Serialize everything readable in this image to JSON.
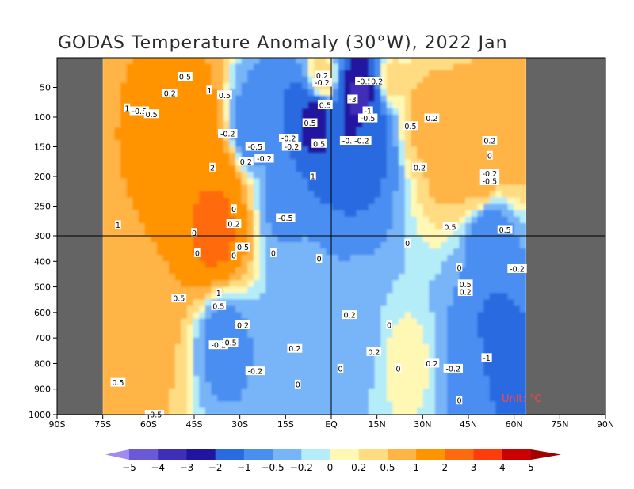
{
  "chart_data": {
    "type": "heatmap",
    "title": "GODAS Temperature Anomaly (30°W), 2022 Jan",
    "units_label": "Unit: °C",
    "x_axis": {
      "range": [
        -90,
        90
      ],
      "ticks": [
        -90,
        -75,
        -60,
        -45,
        -30,
        -15,
        0,
        15,
        30,
        45,
        60,
        75,
        90
      ],
      "tick_labels": [
        "90S",
        "75S",
        "60S",
        "45S",
        "30S",
        "15S",
        "EQ",
        "15N",
        "30N",
        "45N",
        "60N",
        "75N",
        "90N"
      ]
    },
    "y_axis": {
      "label_units": "m",
      "reversed": true,
      "upper_segment": [
        0,
        300
      ],
      "lower_segment": [
        300,
        1000
      ],
      "ticks": [
        50,
        100,
        150,
        200,
        250,
        300,
        400,
        500,
        600,
        700,
        800,
        900,
        1000
      ],
      "tick_labels": [
        "50",
        "100",
        "150",
        "200",
        "250",
        "300",
        "400",
        "500",
        "600",
        "700",
        "800",
        "900",
        "1000"
      ]
    },
    "land_mask_lat": {
      "south_of": -75,
      "north_of": 64
    },
    "colorbar": {
      "levels": [
        -5,
        -4,
        -3,
        -2,
        -1,
        -0.5,
        -0.2,
        0,
        0.2,
        0.5,
        1,
        2,
        3,
        4,
        5
      ],
      "level_labels": [
        "−5",
        "−4",
        "−3",
        "−2",
        "−1",
        "−0.5",
        "−0.2",
        "0",
        "0.2",
        "0.5",
        "1",
        "2",
        "3",
        "4",
        "5"
      ],
      "colors": [
        "#a08cf0",
        "#6a5ad8",
        "#3f2fb8",
        "#2014a0",
        "#2a6ae0",
        "#4a8ef0",
        "#78b4f8",
        "#b4ecf8",
        "#fff8b4",
        "#ffdc82",
        "#ffb444",
        "#ff9400",
        "#ff6a10",
        "#ff3c0c",
        "#cc0000",
        "#a00000"
      ]
    },
    "features": [
      {
        "lat": -38,
        "depth": 290,
        "value": 2.5
      },
      {
        "lat": -38,
        "depth": 220,
        "value": 2
      },
      {
        "lat": -45,
        "depth": 120,
        "value": 1.5
      },
      {
        "lat": -68,
        "depth": 250,
        "value": 1
      },
      {
        "lat": -68,
        "depth": 600,
        "value": 1
      },
      {
        "lat": -60,
        "depth": 700,
        "value": 0.6
      },
      {
        "lat": -27,
        "depth": 120,
        "value": -0.8
      },
      {
        "lat": -16,
        "depth": 250,
        "value": -0.6
      },
      {
        "lat": -35,
        "depth": 700,
        "value": -0.8
      },
      {
        "lat": -20,
        "depth": 820,
        "value": -0.5
      },
      {
        "lat": -10,
        "depth": 550,
        "value": -0.3
      },
      {
        "lat": -5,
        "depth": 100,
        "value": -2.5
      },
      {
        "lat": 10,
        "depth": 75,
        "value": -3.5
      },
      {
        "lat": 13,
        "depth": 110,
        "value": -1.2
      },
      {
        "lat": 8,
        "depth": 700,
        "value": -0.3
      },
      {
        "lat": 25,
        "depth": 800,
        "value": 0.1
      },
      {
        "lat": 30,
        "depth": 100,
        "value": 0.7
      },
      {
        "lat": 40,
        "depth": 160,
        "value": 0.9
      },
      {
        "lat": 49,
        "depth": 200,
        "value": 0.8
      },
      {
        "lat": 52,
        "depth": 300,
        "value": -1
      },
      {
        "lat": 53,
        "depth": 750,
        "value": -1.5
      },
      {
        "lat": 47,
        "depth": 800,
        "value": -0.5
      },
      {
        "lat": 58,
        "depth": 150,
        "value": 0.8
      },
      {
        "lat": -3,
        "depth": 40,
        "value": 0.5
      },
      {
        "lat": 20,
        "depth": 40,
        "value": 0.3
      }
    ],
    "contour_labels": [
      {
        "t": "0.5",
        "lat": -48,
        "depth": 32
      },
      {
        "t": "0.2",
        "lat": -53,
        "depth": 60
      },
      {
        "t": "1",
        "lat": -40,
        "depth": 55
      },
      {
        "t": "0.5",
        "lat": -35,
        "depth": 63
      },
      {
        "t": "1",
        "lat": -67,
        "depth": 85
      },
      {
        "t": "-0.5",
        "lat": -63,
        "depth": 90
      },
      {
        "t": "0.5",
        "lat": -59,
        "depth": 95
      },
      {
        "t": "-0.2",
        "lat": -34,
        "depth": 128
      },
      {
        "t": "-0.5",
        "lat": -25,
        "depth": 150
      },
      {
        "t": "-0.2",
        "lat": -14,
        "depth": 136
      },
      {
        "t": "-0.2",
        "lat": -13,
        "depth": 150
      },
      {
        "t": "0.2",
        "lat": -28,
        "depth": 175
      },
      {
        "t": "-0.2",
        "lat": -22,
        "depth": 170
      },
      {
        "t": "2",
        "lat": -39,
        "depth": 185
      },
      {
        "t": "-0.5",
        "lat": -15,
        "depth": 270
      },
      {
        "t": "0",
        "lat": -32,
        "depth": 255
      },
      {
        "t": "0.2",
        "lat": -32,
        "depth": 280
      },
      {
        "t": "0",
        "lat": -45,
        "depth": 295
      },
      {
        "t": "1",
        "lat": -70,
        "depth": 282
      },
      {
        "t": "0.5",
        "lat": -29,
        "depth": 345
      },
      {
        "t": "0",
        "lat": -44,
        "depth": 368
      },
      {
        "t": "0",
        "lat": -32,
        "depth": 378
      },
      {
        "t": "0",
        "lat": -19,
        "depth": 368
      },
      {
        "t": "0.5",
        "lat": -50,
        "depth": 545
      },
      {
        "t": "1",
        "lat": -37,
        "depth": 525
      },
      {
        "t": "0.5",
        "lat": -37,
        "depth": 575
      },
      {
        "t": "0.2",
        "lat": -29,
        "depth": 650
      },
      {
        "t": "-0.2",
        "lat": -37,
        "depth": 728
      },
      {
        "t": "0.5",
        "lat": -33,
        "depth": 718
      },
      {
        "t": "0.2",
        "lat": -12,
        "depth": 742
      },
      {
        "t": "-0.2",
        "lat": -25,
        "depth": 830
      },
      {
        "t": "0",
        "lat": -11,
        "depth": 882
      },
      {
        "t": "0.5",
        "lat": -70,
        "depth": 875
      },
      {
        "t": "0.2",
        "lat": -3,
        "depth": 30
      },
      {
        "t": "-0.2",
        "lat": -3,
        "depth": 42
      },
      {
        "t": "0.5",
        "lat": -2,
        "depth": 80
      },
      {
        "t": "0.5",
        "lat": -7,
        "depth": 110
      },
      {
        "t": "0.5",
        "lat": -4,
        "depth": 145
      },
      {
        "t": "1",
        "lat": -6,
        "depth": 200
      },
      {
        "t": "-3",
        "lat": 7,
        "depth": 70
      },
      {
        "t": "-0.5",
        "lat": 11,
        "depth": 40
      },
      {
        "t": "0.2",
        "lat": 15,
        "depth": 40
      },
      {
        "t": "-1",
        "lat": 12,
        "depth": 90
      },
      {
        "t": "-0.5",
        "lat": 12,
        "depth": 102
      },
      {
        "t": "-0.5",
        "lat": 6,
        "depth": 140
      },
      {
        "t": "-0.2",
        "lat": 10,
        "depth": 140
      },
      {
        "t": "0.5",
        "lat": 26,
        "depth": 115
      },
      {
        "t": "0.2",
        "lat": 33,
        "depth": 102
      },
      {
        "t": "0.2",
        "lat": 29,
        "depth": 185
      },
      {
        "t": "0.5",
        "lat": 39,
        "depth": 285
      },
      {
        "t": "0",
        "lat": 25,
        "depth": 330
      },
      {
        "t": "0",
        "lat": -4,
        "depth": 390
      },
      {
        "t": "0.2",
        "lat": 6,
        "depth": 610
      },
      {
        "t": "0",
        "lat": 19,
        "depth": 650
      },
      {
        "t": "0.2",
        "lat": 14,
        "depth": 755
      },
      {
        "t": "0",
        "lat": 22,
        "depth": 820
      },
      {
        "t": "0",
        "lat": 3,
        "depth": 820
      },
      {
        "t": "0.2",
        "lat": 33,
        "depth": 800
      },
      {
        "t": "-0.2",
        "lat": 40,
        "depth": 820
      },
      {
        "t": "0",
        "lat": 42,
        "depth": 425
      },
      {
        "t": "0.5",
        "lat": 44,
        "depth": 490
      },
      {
        "t": "0.2",
        "lat": 44,
        "depth": 520
      },
      {
        "t": "0.2",
        "lat": 52,
        "depth": 140
      },
      {
        "t": "0",
        "lat": 52,
        "depth": 165
      },
      {
        "t": "-0.2",
        "lat": 52,
        "depth": 195
      },
      {
        "t": "-0.5",
        "lat": 52,
        "depth": 208
      },
      {
        "t": "0.5",
        "lat": 57,
        "depth": 290
      },
      {
        "t": "-0.2",
        "lat": 61,
        "depth": 430
      },
      {
        "t": "-1",
        "lat": 51,
        "depth": 778
      },
      {
        "t": "0",
        "lat": 42,
        "depth": 945
      },
      {
        "t": "-0.5",
        "lat": -58,
        "depth": 1000
      }
    ]
  }
}
